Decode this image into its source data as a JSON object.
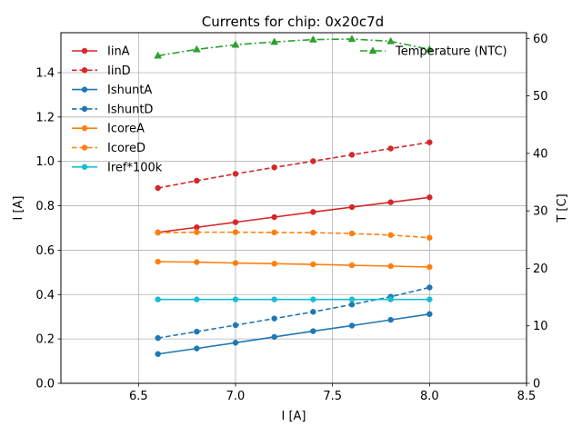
{
  "chart_data": {
    "type": "line",
    "title": "Currents for chip: 0x20c7d",
    "xlabel": "I [A]",
    "ylabel": "I [A]",
    "y2label": "T [C]",
    "xlim": [
      6.1,
      8.5
    ],
    "ylim": [
      0.0,
      1.58
    ],
    "y2lim": [
      0,
      61
    ],
    "grid": true,
    "x_ticks": [
      "6.5",
      "7.0",
      "7.5",
      "8.0",
      "8.5"
    ],
    "y_ticks": [
      "0.0",
      "0.2",
      "0.4",
      "0.6",
      "0.8",
      "1.0",
      "1.2",
      "1.4"
    ],
    "y2_ticks": [
      "0",
      "10",
      "20",
      "30",
      "40",
      "50",
      "60"
    ],
    "x": [
      6.6,
      6.8,
      7.0,
      7.2,
      7.4,
      7.6,
      7.8,
      8.0
    ],
    "series": [
      {
        "name": "IinA",
        "color": "#d62728",
        "style": "solid",
        "marker": "circle",
        "axis": "left",
        "values": [
          0.68,
          0.703,
          0.726,
          0.749,
          0.772,
          0.794,
          0.816,
          0.838
        ]
      },
      {
        "name": "IinD",
        "color": "#d62728",
        "style": "dashed",
        "marker": "circle",
        "axis": "left",
        "values": [
          0.88,
          0.913,
          0.944,
          0.973,
          1.001,
          1.03,
          1.058,
          1.086
        ]
      },
      {
        "name": "IshuntA",
        "color": "#1f77b4",
        "style": "solid",
        "marker": "circle",
        "axis": "left",
        "values": [
          0.132,
          0.157,
          0.183,
          0.209,
          0.235,
          0.26,
          0.286,
          0.312
        ]
      },
      {
        "name": "IshuntD",
        "color": "#1f77b4",
        "style": "dashed",
        "marker": "circle",
        "axis": "left",
        "values": [
          0.204,
          0.233,
          0.262,
          0.292,
          0.322,
          0.355,
          0.39,
          0.432
        ]
      },
      {
        "name": "IcoreA",
        "color": "#ff7f0e",
        "style": "solid",
        "marker": "circle",
        "axis": "left",
        "values": [
          0.548,
          0.546,
          0.542,
          0.539,
          0.536,
          0.532,
          0.528,
          0.524
        ]
      },
      {
        "name": "IcoreD",
        "color": "#ff7f0e",
        "style": "dashed",
        "marker": "circle",
        "axis": "left",
        "values": [
          0.679,
          0.681,
          0.681,
          0.68,
          0.679,
          0.675,
          0.668,
          0.656
        ]
      },
      {
        "name": "Iref*100k",
        "color": "#17becf",
        "style": "solid",
        "marker": "circle",
        "axis": "left",
        "values": [
          0.378,
          0.378,
          0.378,
          0.378,
          0.378,
          0.378,
          0.378,
          0.378
        ]
      },
      {
        "name": "Temperature (NTC)",
        "color": "#2ca02c",
        "style": "dashdot",
        "marker": "triangle",
        "axis": "right",
        "values": [
          57.0,
          58.1,
          58.9,
          59.4,
          59.8,
          59.9,
          59.5,
          58.1
        ]
      }
    ],
    "legend_left": [
      "IinA",
      "IinD",
      "IshuntA",
      "IshuntD",
      "IcoreA",
      "IcoreD",
      "Iref*100k"
    ],
    "legend_right": [
      "Temperature (NTC)"
    ]
  }
}
